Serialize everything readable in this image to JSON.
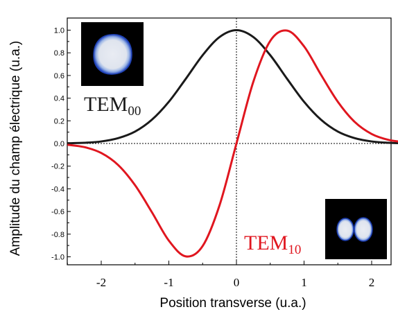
{
  "chart_data": {
    "type": "line",
    "title": "",
    "xlabel": "Position transverse (u.a.)",
    "ylabel": "Amplitude du champ électrique (u.a.)",
    "xlim": [
      -2.5,
      2.5
    ],
    "ylim": [
      -1.05,
      1.05
    ],
    "x_ticks": [
      -2,
      -1,
      0,
      1,
      2
    ],
    "x_tick_labels": [
      "-2",
      "-1",
      "0",
      "1",
      "2"
    ],
    "y_ticks": [
      1.0,
      0.8,
      0.6,
      0.4,
      0.2,
      0.0,
      -0.2,
      -0.4,
      -0.6,
      -0.8,
      -1.0
    ],
    "y_tick_labels": [
      "1.0",
      "0.8",
      "0.6",
      "0.4",
      "0.2",
      "0.0",
      "-0.2",
      "-0.4",
      "-0.6",
      "-0.8",
      "-1.0"
    ],
    "grid": false,
    "reference_lines": [
      "x = 0 (dotted)",
      "y = 0 (dotted)"
    ],
    "series": [
      {
        "color": "#1a1a1a",
        "x": [
          -2.5,
          -2.25,
          -2.0,
          -1.75,
          -1.5,
          -1.25,
          -1.0,
          -0.75,
          -0.5,
          -0.25,
          0.0,
          0.25,
          0.5,
          0.75,
          1.0,
          1.25,
          1.5,
          1.75,
          2.0,
          2.25,
          2.5
        ],
        "values": [
          0.002,
          0.006,
          0.018,
          0.047,
          0.105,
          0.21,
          0.368,
          0.57,
          0.779,
          0.939,
          1.0,
          0.939,
          0.779,
          0.57,
          0.368,
          0.21,
          0.105,
          0.047,
          0.018,
          0.006,
          0.002
        ]
      },
      {
        "color": "#e0161f",
        "x": [
          -2.5,
          -2.25,
          -2.0,
          -1.75,
          -1.5,
          -1.25,
          -1.0,
          -0.75,
          -0.5,
          -0.25,
          0.0,
          0.25,
          0.5,
          0.75,
          1.0,
          1.25,
          1.5,
          1.75,
          2.0,
          2.25,
          2.5
        ],
        "values": [
          -0.011,
          -0.032,
          -0.084,
          -0.19,
          -0.368,
          -0.607,
          -0.857,
          -0.996,
          -0.905,
          -0.545,
          0.0,
          0.545,
          0.905,
          0.996,
          0.857,
          0.607,
          0.368,
          0.19,
          0.084,
          0.032,
          0.011
        ]
      }
    ],
    "annotations": [
      {
        "text_main": "TEM",
        "text_sub": "00",
        "color": "#1a1a1a"
      },
      {
        "text_main": "TEM",
        "text_sub": "10",
        "color": "#e0161f"
      }
    ],
    "insets": [
      {
        "name": "TEM00 beam profile",
        "spots": 1
      },
      {
        "name": "TEM10 beam profile",
        "spots": 2
      }
    ]
  }
}
